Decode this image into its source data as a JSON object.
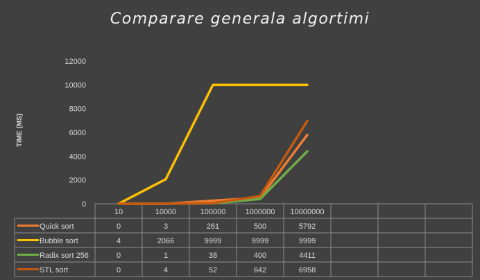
{
  "chart_data": {
    "type": "line",
    "title": "Comparare generala algortimi",
    "ylabel": "TIME (MS)",
    "xlabel": "",
    "ylim": [
      0,
      12000
    ],
    "yticks": [
      0,
      2000,
      4000,
      6000,
      8000,
      10000,
      12000
    ],
    "categories": [
      "10",
      "10000",
      "100000",
      "1000000",
      "10000000"
    ],
    "grid": false,
    "legend": "data table below plot",
    "series": [
      {
        "name": "Quick sort",
        "color": "#ed7d31",
        "values": [
          0,
          3,
          261,
          500,
          5792
        ]
      },
      {
        "name": "Bubble sort",
        "color": "#ffc000",
        "values": [
          4,
          2066,
          9999,
          9999,
          9999
        ]
      },
      {
        "name": "Radix sort 256",
        "color": "#70ad47",
        "values": [
          0,
          1,
          38,
          400,
          4411
        ]
      },
      {
        "name": "STL sort",
        "color": "#c55a11",
        "values": [
          0,
          4,
          52,
          642,
          6958
        ]
      }
    ]
  }
}
